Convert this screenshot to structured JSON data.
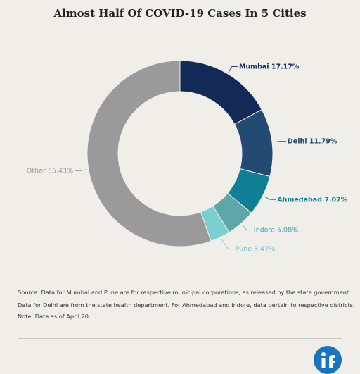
{
  "chart_data": {
    "type": "pie",
    "title": "Almost Half Of COVID-19 Cases In 5 Cities",
    "categories": [
      "Mumbai",
      "Delhi",
      "Ahmedabad",
      "Indore",
      "Pune",
      "Other"
    ],
    "values": [
      17.17,
      11.79,
      7.07,
      5.08,
      3.47,
      55.43
    ],
    "labels": [
      "Mumbai 17.17%",
      "Delhi 11.79%",
      "Ahmedabad 7.07%",
      "Indore 5.08%",
      "Pune 3.47%",
      "Other 55.43%"
    ],
    "colors": [
      "#142a56",
      "#234a73",
      "#0e7f94",
      "#5ea7a8",
      "#7ccfcf",
      "#9a9a9a"
    ],
    "label_colors": [
      "#142a56",
      "#234a73",
      "#0e7f94",
      "#4fa3b5",
      "#6cc1cf",
      "#9a9a9a"
    ],
    "donut": true
  },
  "source": {
    "line1": "Source: Data for Mumbai and Pune are for respective municipal corporations, as  released by the state government.",
    "line2": "Data for Delhi are from the state health department. For Ahmedabad and Indore, data pertain to respective districts.",
    "line3": "Note: Data as of April 20"
  },
  "logo": {
    "icon": "indiaspend-logo-icon"
  }
}
